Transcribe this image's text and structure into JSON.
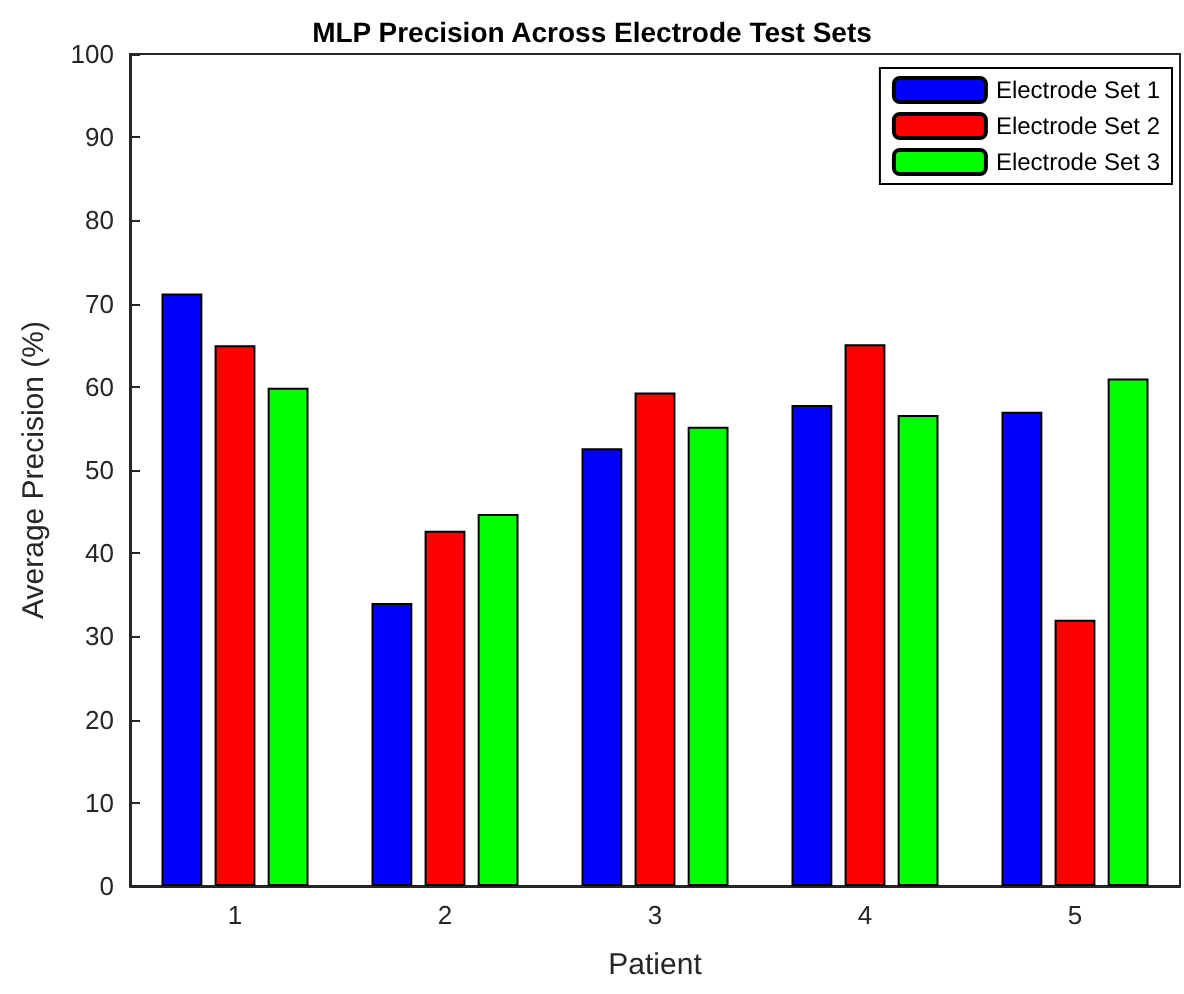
{
  "chart_data": {
    "type": "bar",
    "title": "MLP Precision Across Electrode Test Sets",
    "xlabel": "Patient",
    "ylabel": "Average Precision (%)",
    "categories": [
      "1",
      "2",
      "3",
      "4",
      "5"
    ],
    "series": [
      {
        "name": "Electrode Set 1",
        "color": "#0000ff",
        "values": [
          71.2,
          34,
          52.6,
          57.8,
          57
        ]
      },
      {
        "name": "Electrode Set 2",
        "color": "#ff0000",
        "values": [
          65,
          42.7,
          59.3,
          65.1,
          32
        ]
      },
      {
        "name": "Electrode Set 3",
        "color": "#00ff00",
        "values": [
          59.9,
          44.7,
          55.2,
          56.6,
          61
        ]
      }
    ],
    "ylim": [
      0,
      100
    ],
    "yticks": [
      0,
      10,
      20,
      30,
      40,
      50,
      60,
      70,
      80,
      90,
      100
    ],
    "grid": false,
    "legend": "top right"
  }
}
